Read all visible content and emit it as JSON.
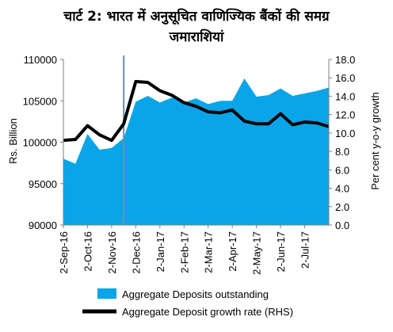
{
  "chart_data": {
    "type": "area",
    "title_line1": "चार्ट 2: भारत में अनुसूचित वाणिज्यिक बैंकों की समग्र",
    "title_line2": "जमाराशियां",
    "ylabel_left": "Rs. Billion",
    "ylabel_right": "Per cent y-o-y growth",
    "ylim_left": [
      90000,
      110000
    ],
    "left_ticks": [
      90000,
      95000,
      100000,
      105000,
      110000
    ],
    "ylim_right": [
      0,
      18
    ],
    "right_ticks": [
      "0.0",
      "2.0",
      "4.0",
      "6.0",
      "8.0",
      "10.0",
      "12.0",
      "14.0",
      "16.0",
      "18.0"
    ],
    "x_tick_labels": [
      "2-Sep-16",
      "2-Oct-16",
      "2-Nov-16",
      "2-Dec-16",
      "2-Jan-17",
      "2-Feb-17",
      "2-Mar-17",
      "2-Apr-17",
      "2-May-17",
      "2-Jun-17",
      "2-Jul-17"
    ],
    "x_tick_index": [
      0,
      2,
      4,
      6,
      8,
      10,
      12,
      14,
      16,
      18,
      20
    ],
    "dates": [
      "2-Sep-16",
      "16-Sep-16",
      "30-Sep-16",
      "14-Oct-16",
      "28-Oct-16",
      "11-Nov-16",
      "25-Nov-16",
      "9-Dec-16",
      "23-Dec-16",
      "6-Jan-17",
      "20-Jan-17",
      "3-Feb-17",
      "17-Feb-17",
      "3-Mar-17",
      "17-Mar-17",
      "31-Mar-17",
      "14-Apr-17",
      "28-Apr-17",
      "12-May-17",
      "26-May-17",
      "9-Jun-17",
      "23-Jun-17",
      "7-Jul-17"
    ],
    "vertical_marker_index": 5,
    "grid": false,
    "legend_position": "bottom",
    "series": [
      {
        "name": "Aggregate Deposits outstanding",
        "type": "area",
        "axis": "left",
        "color": "#0aa5e8",
        "values": [
          98000,
          97400,
          101000,
          99100,
          99300,
          100500,
          104900,
          105600,
          104800,
          105400,
          104800,
          105300,
          104600,
          105000,
          105000,
          107700,
          105500,
          105700,
          106500,
          105600,
          105900,
          106200,
          106600
        ]
      },
      {
        "name": "Aggregate Deposit growth rate (RHS)",
        "type": "line",
        "axis": "right",
        "color": "#000000",
        "values": [
          9.2,
          9.3,
          10.8,
          9.8,
          9.2,
          11.0,
          15.6,
          15.5,
          14.6,
          14.1,
          13.3,
          12.9,
          12.3,
          12.2,
          12.5,
          11.3,
          11.0,
          11.0,
          12.1,
          10.9,
          11.2,
          11.1,
          10.7
        ]
      }
    ]
  }
}
